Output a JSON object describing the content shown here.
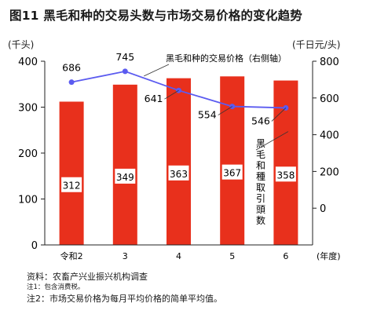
{
  "title": "图11 黑毛和种的交易头数与市场交易价格的变化趋势",
  "left_unit": "(千头)",
  "right_unit": "(千日元/头)",
  "chart_data": {
    "type": "bar",
    "categories": [
      "令和2",
      "3",
      "4",
      "5",
      "6"
    ],
    "x_unit_label": "(年度)",
    "series": [
      {
        "name": "黑\n毛\n和\n種\n取\n引\n頭\n数",
        "type": "bar",
        "axis": "left",
        "values": [
          312,
          349,
          363,
          367,
          358
        ],
        "color": "#e8301c"
      },
      {
        "name": "黑毛和种的交易价格（右侧轴）",
        "type": "line",
        "axis": "right",
        "values": [
          686,
          745,
          641,
          554,
          546
        ],
        "color": "#5b5bf0"
      }
    ],
    "left_axis": {
      "ylim": [
        0,
        400
      ],
      "ticks": [
        0,
        100,
        200,
        300,
        400
      ]
    },
    "right_axis": {
      "ylim": [
        -200,
        800
      ],
      "ticks": [
        0,
        200,
        400,
        600,
        800
      ]
    },
    "grid": false
  },
  "notes": {
    "source": "资料：农畜产兴业振兴机构调查",
    "note1": "注1：包含消费税。",
    "note2": "注2：市场交易价格为每月平均价格的简单平均值。"
  }
}
